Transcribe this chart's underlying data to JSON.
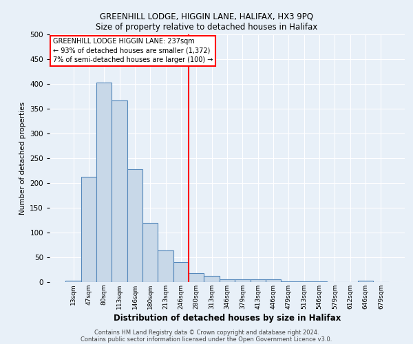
{
  "title1": "GREENHILL LODGE, HIGGIN LANE, HALIFAX, HX3 9PQ",
  "title2": "Size of property relative to detached houses in Halifax",
  "xlabel": "Distribution of detached houses by size in Halifax",
  "ylabel": "Number of detached properties",
  "categories": [
    "13sqm",
    "47sqm",
    "80sqm",
    "113sqm",
    "146sqm",
    "180sqm",
    "213sqm",
    "246sqm",
    "280sqm",
    "313sqm",
    "346sqm",
    "379sqm",
    "413sqm",
    "446sqm",
    "479sqm",
    "513sqm",
    "546sqm",
    "579sqm",
    "612sqm",
    "646sqm",
    "679sqm"
  ],
  "values": [
    3,
    212,
    403,
    367,
    228,
    119,
    64,
    40,
    18,
    13,
    6,
    6,
    5,
    6,
    1,
    1,
    1,
    0,
    0,
    3,
    0
  ],
  "bar_color": "#c8d8e8",
  "bar_edge_color": "#5588bb",
  "vline_x_index": 7.5,
  "vline_color": "red",
  "annotation_text": "GREENHILL LODGE HIGGIN LANE: 237sqm\n← 93% of detached houses are smaller (1,372)\n7% of semi-detached houses are larger (100) →",
  "annotation_box_color": "white",
  "annotation_box_edge_color": "red",
  "footer1": "Contains HM Land Registry data © Crown copyright and database right 2024.",
  "footer2": "Contains public sector information licensed under the Open Government Licence v3.0.",
  "background_color": "#e8f0f8",
  "ylim": [
    0,
    500
  ],
  "yticks": [
    0,
    50,
    100,
    150,
    200,
    250,
    300,
    350,
    400,
    450,
    500
  ]
}
